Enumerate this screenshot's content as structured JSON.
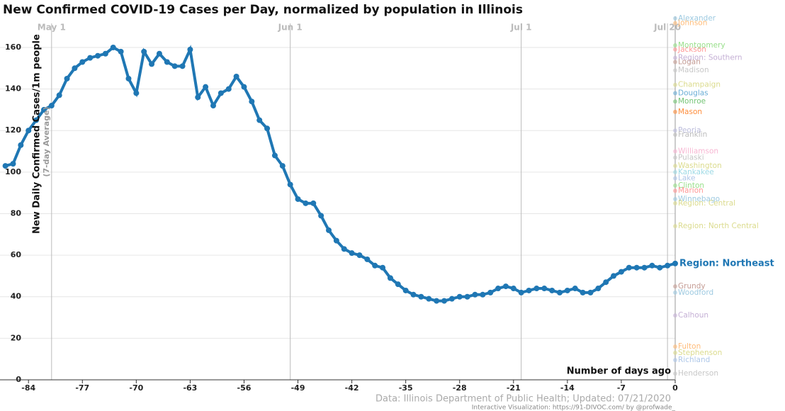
{
  "chart_data": {
    "type": "line",
    "title": "New Confirmed COVID-19 Cases per Day, normalized by population in Illinois",
    "y_label": "New Daily Confirmed Cases/1m people",
    "y_sublabel": "(7-day Average)",
    "x_label": "Number of days ago",
    "source": "Data: Illinois Department of Public Health; Updated: 07/21/2020",
    "credit": "Interactive Visualization: https://91-DIVOC.com/ by @profwade_",
    "xlim": [
      -87.7,
      0
    ],
    "ylim": [
      0,
      175
    ],
    "xticks": [
      -84,
      -77,
      -70,
      -63,
      -56,
      -49,
      -42,
      -35,
      -28,
      -21,
      -14,
      -7,
      0
    ],
    "yticks": [
      0,
      20,
      40,
      60,
      80,
      100,
      120,
      140,
      160
    ],
    "date_markers": [
      {
        "value": -81,
        "label": "May 1"
      },
      {
        "value": -50,
        "label": "Jun 1"
      },
      {
        "value": -20,
        "label": "Jul 1"
      },
      {
        "value": -1,
        "label": "Jul 20"
      }
    ],
    "grid": true,
    "x": [
      -87,
      -86,
      -85,
      -84,
      -83,
      -82,
      -81,
      -80,
      -79,
      -78,
      -77,
      -76,
      -75,
      -74,
      -73,
      -72,
      -71,
      -70,
      -69,
      -68,
      -67,
      -66,
      -65,
      -64,
      -63,
      -62,
      -61,
      -60,
      -59,
      -58,
      -57,
      -56,
      -55,
      -54,
      -53,
      -52,
      -51,
      -50,
      -49,
      -48,
      -47,
      -46,
      -45,
      -44,
      -43,
      -42,
      -41,
      -40,
      -39,
      -38,
      -37,
      -36,
      -35,
      -34,
      -33,
      -32,
      -31,
      -30,
      -29,
      -28,
      -27,
      -26,
      -25,
      -24,
      -23,
      -22,
      -21,
      -20,
      -19,
      -18,
      -17,
      -16,
      -15,
      -14,
      -13,
      -12,
      -11,
      -10,
      -9,
      -8,
      -7,
      -6,
      -5,
      -4,
      -3,
      -2,
      -1,
      0
    ],
    "series": [
      {
        "name": "Region: Northeast",
        "color": "#1f77b4",
        "highlight": true,
        "values": [
          103,
          104,
          113,
          120,
          125,
          130,
          132,
          137,
          145,
          150,
          153,
          155,
          156,
          157,
          160,
          158,
          145,
          138,
          158,
          152,
          157,
          153,
          151,
          151,
          159,
          136,
          141,
          132,
          138,
          140,
          146,
          141,
          134,
          125,
          121,
          108,
          103,
          94,
          87,
          85,
          85,
          79,
          72,
          67,
          63,
          61,
          60,
          58,
          55,
          54,
          49,
          46,
          43,
          41,
          40,
          39,
          38,
          38,
          39,
          40,
          40,
          41,
          41,
          42,
          44,
          45,
          44,
          42,
          43,
          44,
          44,
          43,
          42,
          43,
          44,
          42,
          42,
          44,
          47,
          50,
          52,
          54,
          54,
          54,
          55,
          54,
          55,
          56
        ]
      },
      {
        "name": "Alexander",
        "color": "#9ecae1",
        "last": 174
      },
      {
        "name": "Johnson",
        "color": "#ffbb78",
        "last": 171.7
      },
      {
        "name": "Montgomery",
        "color": "#98df8a",
        "last": 161
      },
      {
        "name": "Jackson",
        "color": "#ff9896",
        "last": 159
      },
      {
        "name": "Region: Southern",
        "color": "#c5b0d5",
        "last": 155
      },
      {
        "name": "Logan",
        "color": "#c49c94",
        "last": 153
      },
      {
        "name": "Madison",
        "color": "#c7c7c7",
        "last": 149
      },
      {
        "name": "Champaign",
        "color": "#dbdb8d",
        "last": 142
      },
      {
        "name": "Douglas",
        "color": "#6baed6",
        "last": 138
      },
      {
        "name": "Monroe",
        "color": "#74c476",
        "last": 134
      },
      {
        "name": "Mason",
        "color": "#fd8d3c",
        "last": 129
      },
      {
        "name": "Peoria",
        "color": "#bcbddc",
        "last": 120
      },
      {
        "name": "Franklin",
        "color": "#bdbdbd",
        "last": 118
      },
      {
        "name": "Williamson",
        "color": "#f7b6d2",
        "last": 110
      },
      {
        "name": "Pulaski",
        "color": "#c7c7c7",
        "last": 107
      },
      {
        "name": "Washington",
        "color": "#dbdb8d",
        "last": 103
      },
      {
        "name": "Kankakee",
        "color": "#9edae5",
        "last": 100
      },
      {
        "name": "Lake",
        "color": "#aec7e8",
        "last": 97
      },
      {
        "name": "Clinton",
        "color": "#98df8a",
        "last": 93.5
      },
      {
        "name": "Marion",
        "color": "#ff9896",
        "last": 91
      },
      {
        "name": "Winnebago",
        "color": "#9ecae1",
        "last": 87
      },
      {
        "name": "Region: Central",
        "color": "#dbdb8d",
        "last": 85
      },
      {
        "name": "Region: North Central",
        "color": "#dbdb8d",
        "last": 74
      },
      {
        "name": "Grundy",
        "color": "#c49c94",
        "last": 45
      },
      {
        "name": "Woodford",
        "color": "#9ecae1",
        "last": 42
      },
      {
        "name": "Calhoun",
        "color": "#c5b0d5",
        "last": 31
      },
      {
        "name": "Fulton",
        "color": "#ffbb78",
        "last": 16
      },
      {
        "name": "Stephenson",
        "color": "#dbdb8d",
        "last": 13
      },
      {
        "name": "Richland",
        "color": "#aec7e8",
        "last": 9.5
      },
      {
        "name": "Henderson",
        "color": "#c7c7c7",
        "last": 3
      }
    ]
  }
}
